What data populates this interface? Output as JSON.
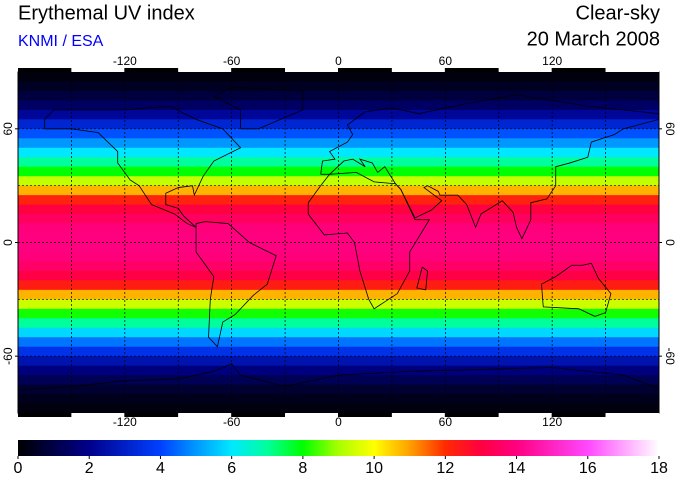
{
  "header": {
    "title": "Erythemal UV index",
    "source": "KNMI / ESA",
    "condition": "Clear-sky",
    "date": "20 March 2008"
  },
  "map": {
    "lonlim": [
      -180,
      180
    ],
    "latlim": [
      -90,
      90
    ],
    "lonticks": [
      -120,
      -60,
      0,
      60,
      120
    ],
    "latticks": [
      -60,
      0,
      60
    ],
    "graticule": {
      "lon": [
        -150,
        -120,
        -90,
        -60,
        -30,
        0,
        30,
        60,
        90,
        120,
        150
      ],
      "lat": [
        -60,
        -30,
        0,
        30,
        60
      ]
    },
    "zonal_uv": {
      "lat": [
        87.5,
        82.5,
        77.5,
        72.5,
        67.5,
        62.5,
        57.5,
        52.5,
        47.5,
        42.5,
        37.5,
        32.5,
        27.5,
        22.5,
        17.5,
        12.5,
        7.5,
        2.5,
        -2.5,
        -7.5,
        -12.5,
        -17.5,
        -22.5,
        -27.5,
        -32.5,
        -37.5,
        -42.5,
        -47.5,
        -52.5,
        -57.5,
        -62.5,
        -67.5,
        -72.5,
        -77.5,
        -82.5,
        -87.5
      ],
      "uv": [
        0.2,
        0.5,
        0.9,
        1.4,
        2.2,
        3.2,
        4.2,
        5.0,
        6.0,
        7.0,
        8.0,
        9.3,
        10.8,
        12.2,
        13.0,
        13.5,
        13.9,
        14.0,
        14.0,
        13.9,
        13.6,
        13.1,
        12.3,
        10.8,
        9.4,
        8.1,
        7.0,
        5.8,
        4.6,
        3.6,
        2.6,
        1.8,
        1.2,
        0.7,
        0.4,
        0.2
      ]
    }
  },
  "colorbar": {
    "lim": [
      0,
      18
    ],
    "ticks": [
      0,
      2,
      4,
      6,
      8,
      10,
      12,
      14,
      16,
      18
    ],
    "colormap": [
      {
        "value": 0,
        "color": "#000000"
      },
      {
        "value": 2,
        "color": "#00008c"
      },
      {
        "value": 4,
        "color": "#0040ff"
      },
      {
        "value": 5,
        "color": "#0098ff"
      },
      {
        "value": 6,
        "color": "#00e8ff"
      },
      {
        "value": 7,
        "color": "#00ff9c"
      },
      {
        "value": 8,
        "color": "#00ff00"
      },
      {
        "value": 9,
        "color": "#a8ff00"
      },
      {
        "value": 10,
        "color": "#ffff00"
      },
      {
        "value": 11,
        "color": "#ffa000"
      },
      {
        "value": 12,
        "color": "#ff2a00"
      },
      {
        "value": 13,
        "color": "#ff0040"
      },
      {
        "value": 14,
        "color": "#ff0080"
      },
      {
        "value": 16,
        "color": "#ff48ff"
      },
      {
        "value": 18,
        "color": "#ffffff"
      }
    ]
  }
}
